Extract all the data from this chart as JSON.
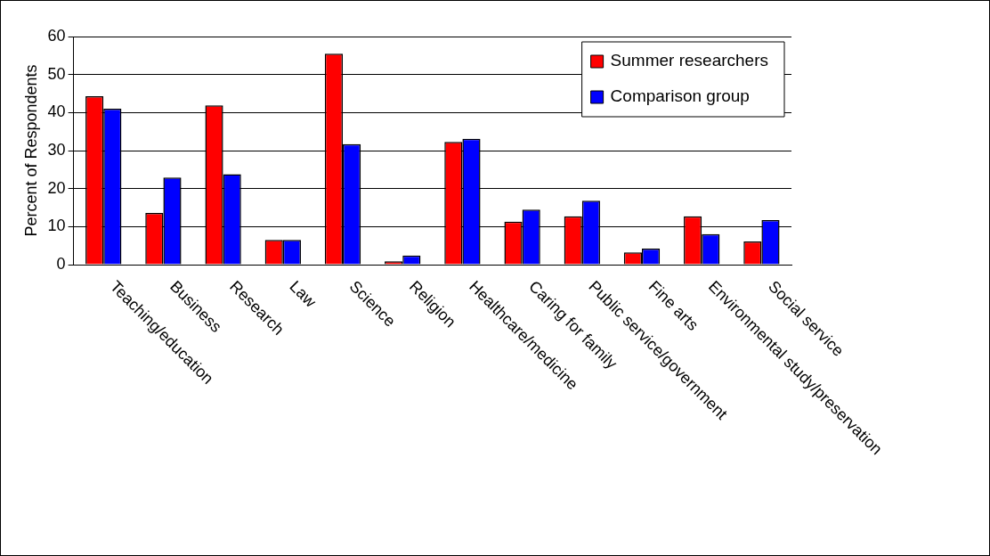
{
  "chart_data": {
    "type": "bar",
    "ylabel": "Percent of Respondents",
    "categories": [
      "Teaching/education",
      "Business",
      "Research",
      "Law",
      "Science",
      "Religion",
      "Healthcare/medicine",
      "Caring for family",
      "Public service/government",
      "Fine arts",
      "Environmental study/preservation",
      "Social service"
    ],
    "series": [
      {
        "name": "Summer researchers",
        "color": "#ff0000",
        "values": [
          44.3,
          13.6,
          41.9,
          6.5,
          55.5,
          0.9,
          32.3,
          11.3,
          12.7,
          3.2,
          12.7,
          6.1
        ]
      },
      {
        "name": "Comparison group",
        "color": "#0000ff",
        "values": [
          41,
          22.9,
          23.8,
          6.5,
          31.7,
          2.4,
          33.1,
          14.5,
          16.8,
          4.2,
          8,
          11.7
        ]
      }
    ],
    "ylim": [
      0,
      60
    ],
    "yticks": [
      0,
      10,
      20,
      30,
      40,
      50,
      60
    ],
    "grid": "y",
    "legend": "top right"
  }
}
